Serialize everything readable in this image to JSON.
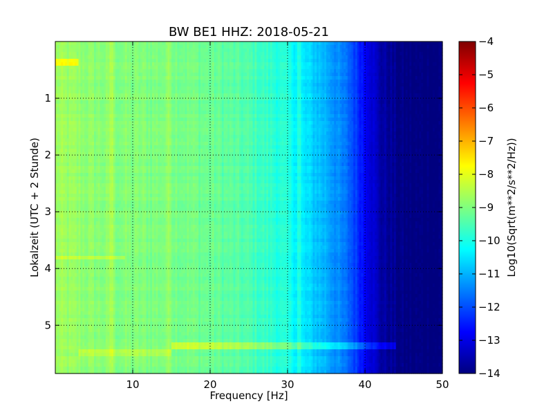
{
  "chart_data": {
    "type": "heatmap",
    "title": "BW BE1 HHZ: 2018-05-21",
    "xlabel": "Frequency [Hz]",
    "ylabel": "Lokalzeit (UTC + 2 Stunde)",
    "xlim": [
      0,
      50
    ],
    "ylim": [
      5.85,
      0
    ],
    "x_ticks": [
      10,
      20,
      30,
      40,
      50
    ],
    "y_ticks": [
      1,
      2,
      3,
      4,
      5
    ],
    "grid": true,
    "colorbar": {
      "label": "Log10(Sqrt(m**2/s**2/Hz))",
      "range": [
        -14,
        -4
      ],
      "ticks": [
        -4,
        -5,
        -6,
        -7,
        -8,
        -9,
        -10,
        -11,
        -12,
        -13,
        -14
      ],
      "colormap": "jet",
      "colormap_hex": [
        "#00007f",
        "#0000ff",
        "#007fff",
        "#00ffff",
        "#7fff7f",
        "#ffff00",
        "#ff7f00",
        "#ff0000",
        "#7f0000"
      ]
    },
    "level_profile": {
      "frequency_hz": [
        0,
        5,
        10,
        15,
        20,
        25,
        30,
        32,
        35,
        38,
        40,
        42,
        45,
        50
      ],
      "log10_level": [
        -8.7,
        -8.9,
        -9.0,
        -9.0,
        -9.2,
        -9.5,
        -10.0,
        -10.5,
        -11.0,
        -11.8,
        -12.7,
        -13.6,
        -14.0,
        -14.0
      ]
    },
    "features": [
      {
        "type": "horizontal_band",
        "time_hours": 5.38,
        "freq_range_hz": [
          15,
          44
        ],
        "delta_log10": 0.8
      },
      {
        "type": "horizontal_band",
        "time_hours": 5.5,
        "freq_range_hz": [
          3,
          15
        ],
        "delta_log10": 0.5
      },
      {
        "type": "horizontal_band",
        "time_hours": 0.35,
        "freq_range_hz": [
          0,
          3
        ],
        "delta_log10": 0.9
      },
      {
        "type": "horizontal_band",
        "time_hours": 3.8,
        "freq_range_hz": [
          0,
          9
        ],
        "delta_log10": 0.5
      },
      {
        "type": "vertical_band",
        "freq_hz": 7.3,
        "delta_log10": 0.4
      },
      {
        "type": "vertical_band",
        "freq_hz": 14.8,
        "delta_log10": 0.3
      },
      {
        "type": "vertical_band",
        "freq_hz": 31.5,
        "delta_log10": 0.4
      }
    ]
  }
}
